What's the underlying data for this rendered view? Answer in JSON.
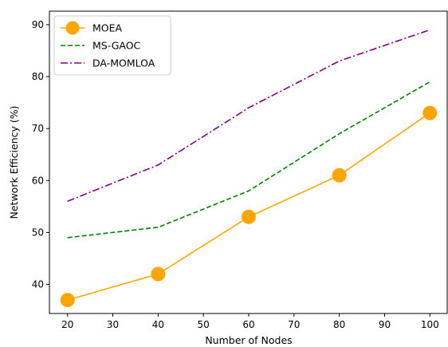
{
  "chart_data": {
    "type": "line",
    "xlabel": "Number of Nodes",
    "ylabel": "Network Efficiency (%)",
    "x": [
      20,
      40,
      60,
      80,
      100
    ],
    "xlim": [
      16,
      104
    ],
    "ylim": [
      34.4,
      92.6
    ],
    "xticks": [
      20,
      30,
      40,
      50,
      60,
      70,
      80,
      90,
      100
    ],
    "yticks": [
      40,
      50,
      60,
      70,
      80,
      90
    ],
    "grid": false,
    "legend_position": "top-left",
    "series": [
      {
        "name": "MOEA",
        "values": [
          37,
          42,
          53,
          61,
          73
        ],
        "color": "#ffa500",
        "line_style": "solid",
        "marker": "circle"
      },
      {
        "name": "MS-GAOC",
        "values": [
          49,
          51,
          58,
          69,
          79
        ],
        "color": "#008000",
        "line_style": "dashed",
        "marker": "none"
      },
      {
        "name": "DA-MOMLOA",
        "values": [
          56,
          63,
          74,
          83,
          89
        ],
        "color": "#800080",
        "line_style": "dash-dot",
        "marker": "none"
      }
    ]
  }
}
